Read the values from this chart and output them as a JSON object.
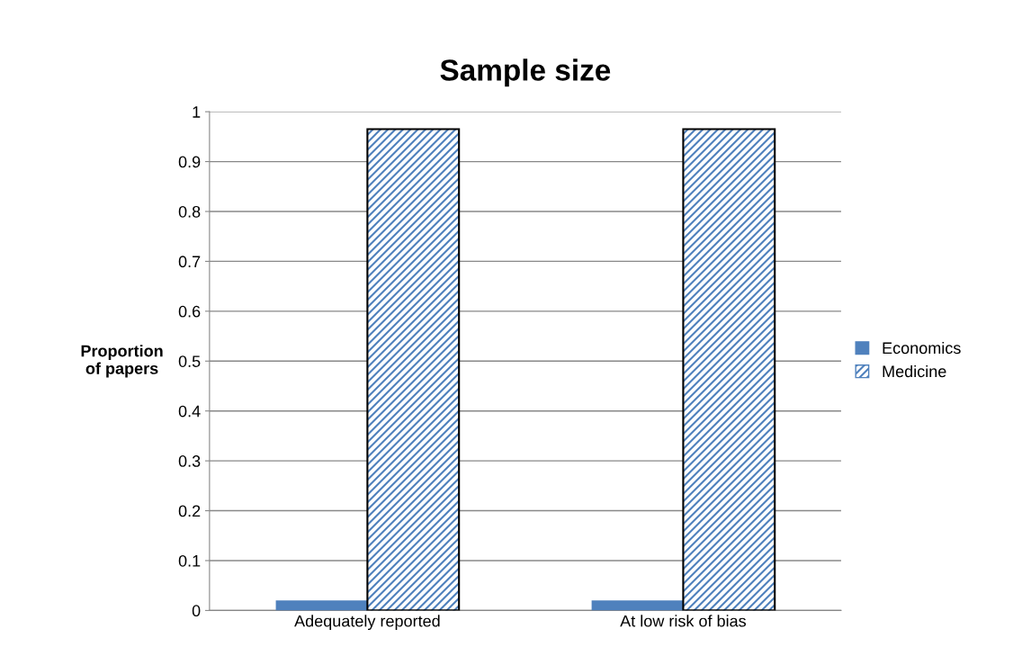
{
  "chart_data": {
    "type": "bar",
    "title": "Sample size",
    "ylabel": "Proportion\nof papers",
    "categories": [
      "Adequately reported",
      "At low risk of bias"
    ],
    "series": [
      {
        "name": "Economics",
        "color": "#4f81bd",
        "values": [
          0.02,
          0.02
        ]
      },
      {
        "name": "Medicine",
        "color": "#4f81bd",
        "values": [
          0.965,
          0.965
        ]
      }
    ],
    "ylim": [
      0,
      1
    ],
    "yticks": [
      0,
      0.1,
      0.2,
      0.3,
      0.4,
      0.5,
      0.6,
      0.7,
      0.8,
      0.9,
      1
    ],
    "grid": "y",
    "legend": "right"
  }
}
